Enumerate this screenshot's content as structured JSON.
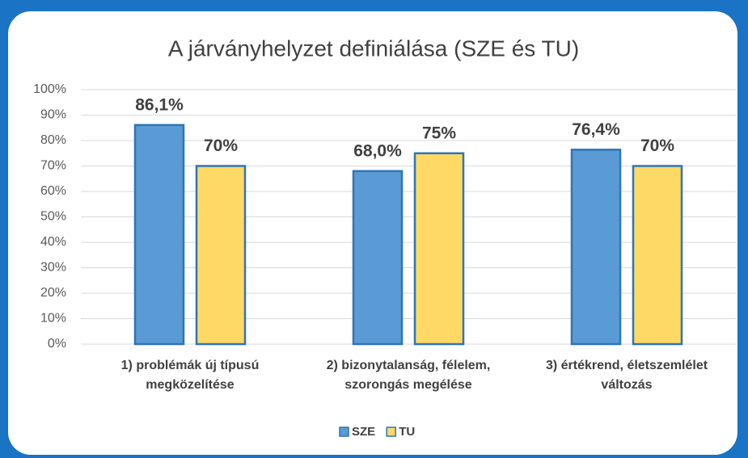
{
  "chart_data": {
    "type": "bar",
    "title": "A járványhelyzet definiálása (SZE és TU)",
    "categories": [
      "1) problémák új típusú megközelítése",
      "2) bizonytalanság, félelem, szorongás megélése",
      "3) értékrend, életszemlélet változás"
    ],
    "series": [
      {
        "name": "SZE",
        "color": "#5b9bd5",
        "values": [
          86.1,
          68.0,
          76.4
        ],
        "value_labels": [
          "86,1%",
          "68,0%",
          "76,4%"
        ]
      },
      {
        "name": "TU",
        "color": "#ffd966",
        "values": [
          70,
          75,
          70
        ],
        "value_labels": [
          "70%",
          "75%",
          "70%"
        ]
      }
    ],
    "ylim": [
      0,
      100
    ],
    "yticks": [
      {
        "value": 0,
        "label": "0%"
      },
      {
        "value": 10,
        "label": "10%"
      },
      {
        "value": 20,
        "label": "20%"
      },
      {
        "value": 30,
        "label": "30%"
      },
      {
        "value": 40,
        "label": "40%"
      },
      {
        "value": 50,
        "label": "50%"
      },
      {
        "value": 60,
        "label": "60%"
      },
      {
        "value": 70,
        "label": "70%"
      },
      {
        "value": 80,
        "label": "80%"
      },
      {
        "value": 90,
        "label": "90%"
      },
      {
        "value": 100,
        "label": "100%"
      }
    ],
    "grid": true,
    "legend": "bottom"
  }
}
